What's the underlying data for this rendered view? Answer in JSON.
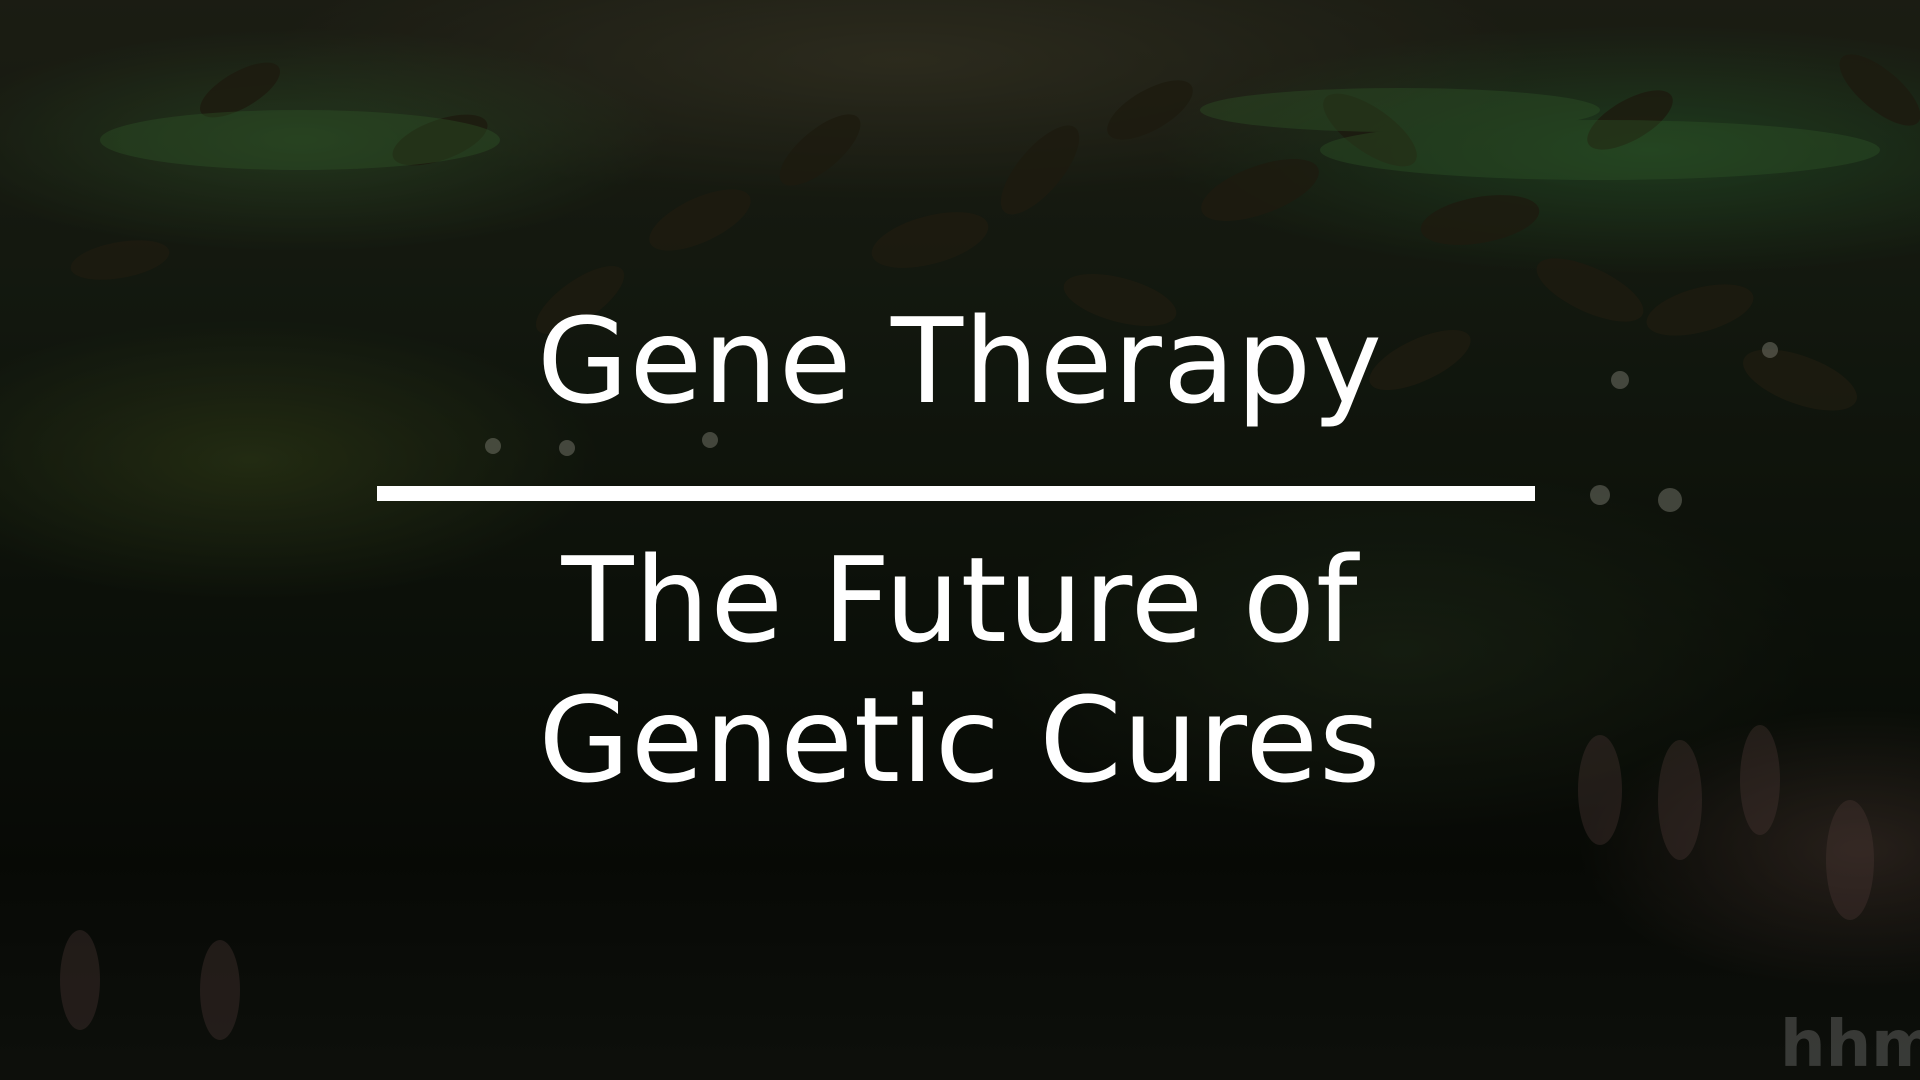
{
  "title": "Gene Therapy",
  "subtitle_line1": "The Future of",
  "subtitle_line2": "Genetic Cures",
  "watermark_text": "hhm",
  "colors": {
    "text": "#ffffff",
    "rule": "#ffffff",
    "background_dark": "#0d110b",
    "background_green": "#3c7a3a"
  }
}
